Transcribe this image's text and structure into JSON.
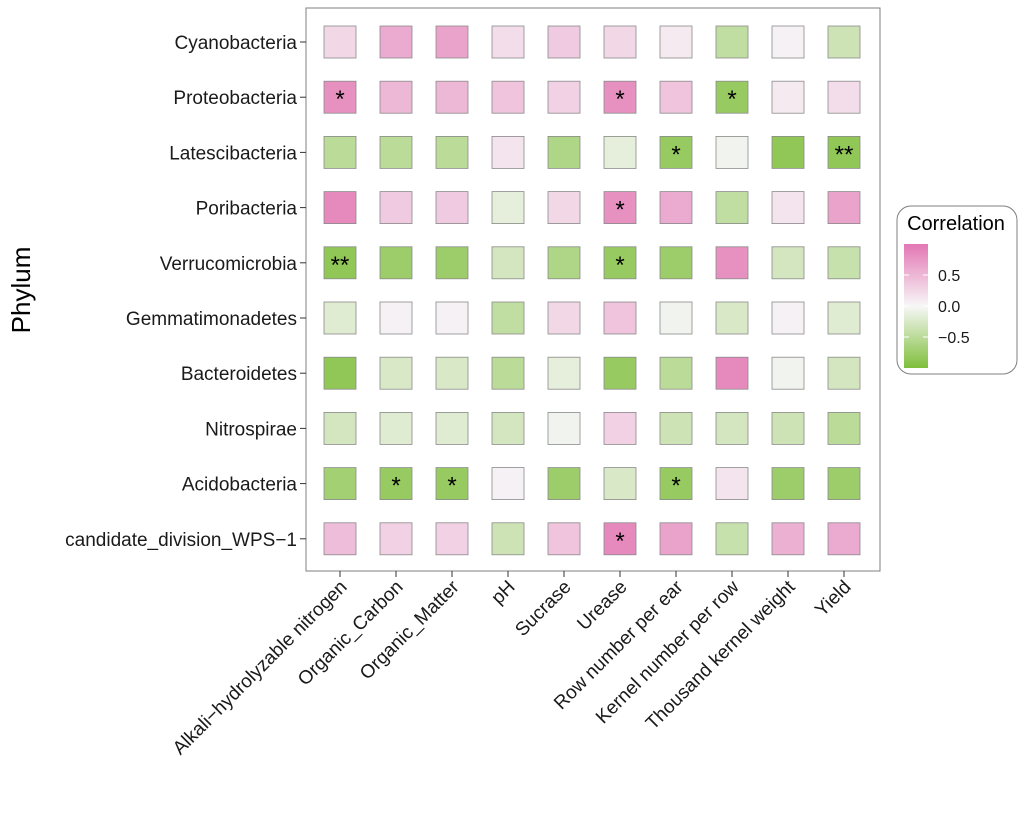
{
  "chart_data": {
    "type": "heatmap",
    "title": "",
    "xlabel": "",
    "ylabel": "Phylum",
    "rows": [
      "Cyanobacteria",
      "Proteobacteria",
      "Latescibacteria",
      "Poribacteria",
      "Verrucomicrobia",
      "Gemmatimonadetes",
      "Bacteroidetes",
      "Nitrospirae",
      "Acidobacteria",
      "candidate_division_WPS−1"
    ],
    "columns": [
      "Alkali−hydrolyzable nitrogen",
      "Organic_Carbon",
      "Organic_Matter",
      "pH",
      "Sucrase",
      "Urease",
      "Row number per ear",
      "Kernel number per row",
      "Thousand kernel weight",
      "Yield"
    ],
    "values": [
      [
        0.25,
        0.6,
        0.65,
        0.2,
        0.35,
        0.25,
        0.1,
        -0.45,
        0.05,
        -0.35
      ],
      [
        0.8,
        0.5,
        0.5,
        0.4,
        0.3,
        0.8,
        0.4,
        -0.8,
        0.1,
        0.2
      ],
      [
        -0.5,
        -0.5,
        -0.5,
        0.15,
        -0.6,
        -0.15,
        -0.8,
        -0.05,
        -0.85,
        -0.85
      ],
      [
        0.85,
        0.35,
        0.35,
        -0.15,
        0.25,
        0.8,
        0.6,
        -0.45,
        0.15,
        0.65
      ],
      [
        -0.85,
        -0.75,
        -0.75,
        -0.3,
        -0.6,
        -0.8,
        -0.75,
        0.8,
        -0.3,
        -0.4
      ],
      [
        -0.2,
        0.05,
        0.05,
        -0.45,
        0.25,
        0.4,
        -0.05,
        -0.25,
        0.05,
        -0.2
      ],
      [
        -0.85,
        -0.25,
        -0.25,
        -0.5,
        -0.15,
        -0.8,
        -0.5,
        0.85,
        -0.05,
        -0.3
      ],
      [
        -0.3,
        -0.2,
        -0.2,
        -0.3,
        -0.05,
        0.3,
        -0.35,
        -0.3,
        -0.35,
        -0.5
      ],
      [
        -0.7,
        -0.8,
        -0.8,
        0.05,
        -0.75,
        -0.25,
        -0.8,
        0.15,
        -0.75,
        -0.75
      ],
      [
        0.45,
        0.3,
        0.3,
        -0.35,
        0.4,
        0.85,
        0.65,
        -0.4,
        0.55,
        0.6
      ]
    ],
    "significance": [
      [
        "",
        "",
        "",
        "",
        "",
        "",
        "",
        "",
        "",
        ""
      ],
      [
        "*",
        "",
        "",
        "",
        "",
        "*",
        "",
        "*",
        "",
        ""
      ],
      [
        "",
        "",
        "",
        "",
        "",
        "",
        "*",
        "",
        "",
        "**"
      ],
      [
        "",
        "",
        "",
        "",
        "",
        "*",
        "",
        "",
        "",
        ""
      ],
      [
        "**",
        "",
        "",
        "",
        "",
        "*",
        "",
        "",
        "",
        ""
      ],
      [
        "",
        "",
        "",
        "",
        "",
        "",
        "",
        "",
        "",
        ""
      ],
      [
        "",
        "",
        "",
        "",
        "",
        "",
        "",
        "",
        "",
        ""
      ],
      [
        "",
        "",
        "",
        "",
        "",
        "",
        "",
        "",
        "",
        ""
      ],
      [
        "",
        "*",
        "*",
        "",
        "",
        "",
        "*",
        "",
        "",
        ""
      ],
      [
        "",
        "",
        "",
        "",
        "",
        "*",
        "",
        "",
        "",
        ""
      ]
    ],
    "value_range": [
      -1,
      1
    ],
    "colors": {
      "low": "#7fbf3b",
      "mid": "#f7f7f7",
      "high": "#e377b4"
    },
    "legend": {
      "title": "Correlation",
      "ticks": [
        0.5,
        0.0,
        -0.5
      ],
      "tick_labels": [
        "0.5",
        "0.0",
        "−0.5"
      ],
      "placement": "right"
    },
    "grid": false
  }
}
